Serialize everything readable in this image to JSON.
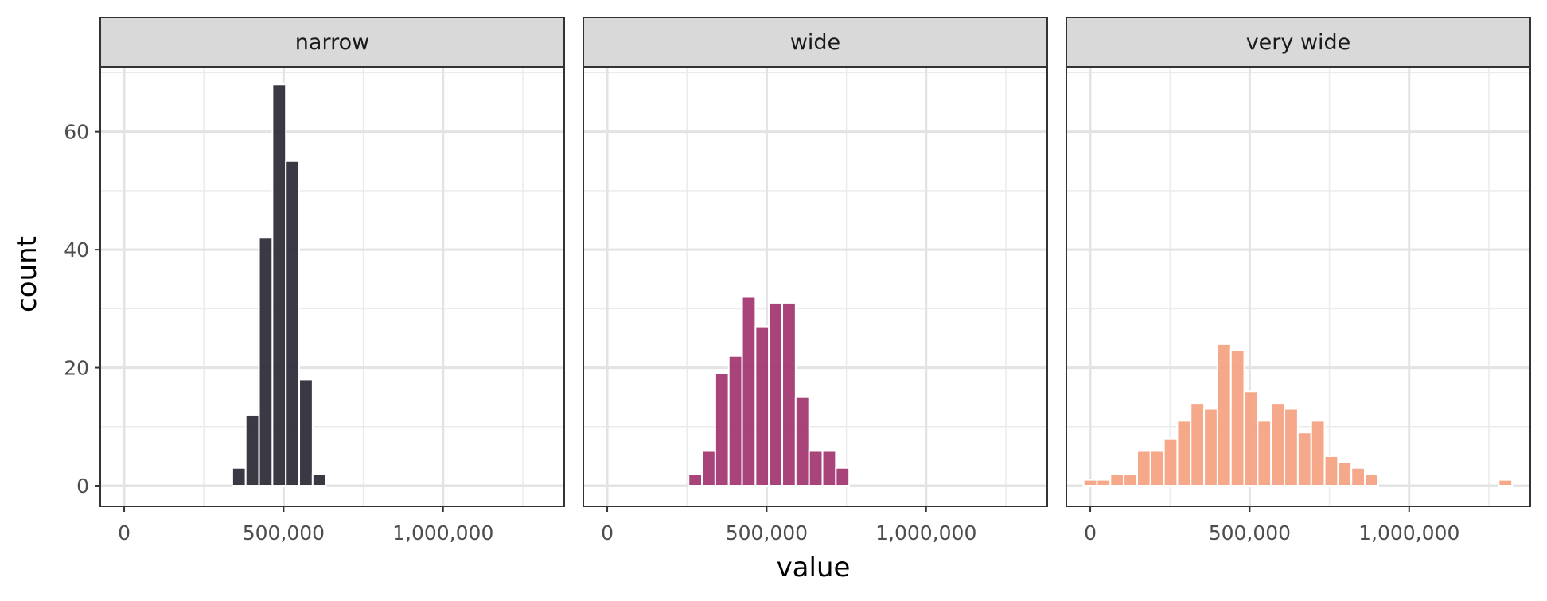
{
  "chart_data": {
    "type": "bar",
    "subtype": "histogram",
    "layout": "facet",
    "xlabel": "value",
    "ylabel": "count",
    "xlim": [
      -75000,
      1380000
    ],
    "ylim": [
      -3.5,
      71
    ],
    "x_ticks": [
      0,
      500000,
      1000000
    ],
    "x_tick_labels": [
      "0",
      "500,000",
      "1,000,000"
    ],
    "y_ticks": [
      0,
      20,
      40,
      60
    ],
    "y_tick_labels": [
      "0",
      "20",
      "40",
      "60"
    ],
    "grid": true,
    "legend": "none",
    "bin_width": 42000,
    "panels": [
      {
        "label": "narrow",
        "color": "#26242f",
        "bins": [
          {
            "x": 360000,
            "count": 3
          },
          {
            "x": 402000,
            "count": 12
          },
          {
            "x": 444000,
            "count": 42
          },
          {
            "x": 486000,
            "count": 68
          },
          {
            "x": 528000,
            "count": 55
          },
          {
            "x": 570000,
            "count": 18
          },
          {
            "x": 612000,
            "count": 2
          }
        ]
      },
      {
        "label": "wide",
        "color": "#a0306b",
        "bins": [
          {
            "x": 276000,
            "count": 2
          },
          {
            "x": 318000,
            "count": 6
          },
          {
            "x": 360000,
            "count": 19
          },
          {
            "x": 402000,
            "count": 22
          },
          {
            "x": 444000,
            "count": 32
          },
          {
            "x": 486000,
            "count": 27
          },
          {
            "x": 528000,
            "count": 31
          },
          {
            "x": 570000,
            "count": 31
          },
          {
            "x": 612000,
            "count": 15
          },
          {
            "x": 654000,
            "count": 6
          },
          {
            "x": 696000,
            "count": 6
          },
          {
            "x": 738000,
            "count": 3
          }
        ]
      },
      {
        "label": "very wide",
        "color": "#f4a07d",
        "bins": [
          {
            "x": 0,
            "count": 1
          },
          {
            "x": 42000,
            "count": 1
          },
          {
            "x": 84000,
            "count": 2
          },
          {
            "x": 126000,
            "count": 2
          },
          {
            "x": 168000,
            "count": 6
          },
          {
            "x": 210000,
            "count": 6
          },
          {
            "x": 252000,
            "count": 8
          },
          {
            "x": 294000,
            "count": 11
          },
          {
            "x": 336000,
            "count": 14
          },
          {
            "x": 378000,
            "count": 13
          },
          {
            "x": 420000,
            "count": 24
          },
          {
            "x": 462000,
            "count": 23
          },
          {
            "x": 504000,
            "count": 16
          },
          {
            "x": 546000,
            "count": 11
          },
          {
            "x": 588000,
            "count": 14
          },
          {
            "x": 630000,
            "count": 13
          },
          {
            "x": 672000,
            "count": 9
          },
          {
            "x": 714000,
            "count": 11
          },
          {
            "x": 756000,
            "count": 5
          },
          {
            "x": 798000,
            "count": 4
          },
          {
            "x": 840000,
            "count": 3
          },
          {
            "x": 882000,
            "count": 2
          },
          {
            "x": 1302000,
            "count": 1
          }
        ]
      }
    ]
  }
}
